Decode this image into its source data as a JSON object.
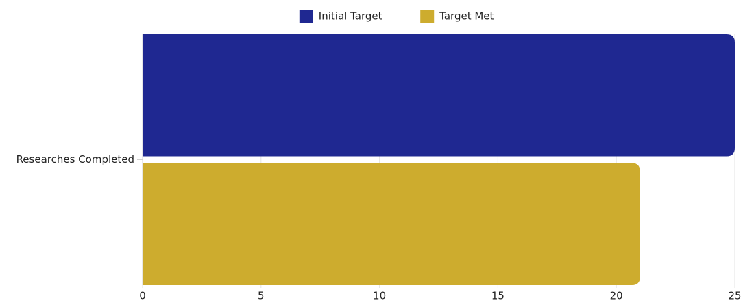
{
  "chart_data": {
    "type": "hbar",
    "categories": [
      "Researches Completed"
    ],
    "series": [
      {
        "name": "Initial Target",
        "color": "#1f2891",
        "values": [
          25
        ]
      },
      {
        "name": "Target Met",
        "color": "#cdac2e",
        "values": [
          21
        ]
      }
    ],
    "xlim": [
      0,
      25
    ],
    "xticks": [
      0,
      5,
      10,
      15,
      20,
      25
    ],
    "grid": true,
    "legend": "top"
  }
}
